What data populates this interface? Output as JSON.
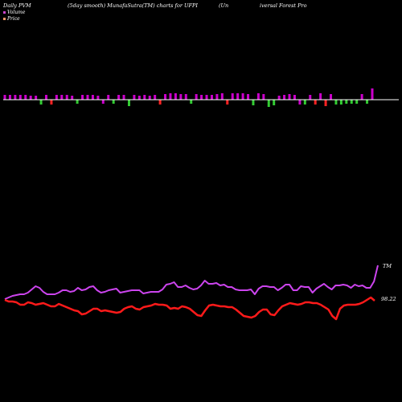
{
  "header": {
    "left": "Daily PVM",
    "mid1": "(5day smooth) MunafaSutra(TM) charts for UFPI",
    "mid2": "(Un",
    "right": "iversal Forest Pro"
  },
  "legend": {
    "volume_label": "Volume",
    "price_label": "Price",
    "volume_color": "#cc44cc",
    "price_color": "#ff9966"
  },
  "colors": {
    "background": "#000000",
    "pvm_up": "#cc00cc",
    "pvm_down": "#ff2222",
    "pvm_flat": "#33cc33",
    "pvm_line": "#cc44ee",
    "price_line": "#ff1a1a",
    "baseline": "#ffffff"
  },
  "labels": {
    "pvm_end": "TM",
    "price_end": "98.22"
  },
  "chart_data": {
    "type": "bar",
    "bars": [
      {
        "v": 6,
        "c": "up"
      },
      {
        "v": 6,
        "c": "up"
      },
      {
        "v": 6,
        "c": "up"
      },
      {
        "v": 6,
        "c": "up"
      },
      {
        "v": 6,
        "c": "up"
      },
      {
        "v": 5,
        "c": "up"
      },
      {
        "v": 5,
        "c": "up"
      },
      {
        "v": -6,
        "c": "flat"
      },
      {
        "v": 6,
        "c": "up"
      },
      {
        "v": -6,
        "c": "down"
      },
      {
        "v": 6,
        "c": "up"
      },
      {
        "v": 6,
        "c": "up"
      },
      {
        "v": 6,
        "c": "up"
      },
      {
        "v": 5,
        "c": "up"
      },
      {
        "v": -5,
        "c": "flat"
      },
      {
        "v": 6,
        "c": "up"
      },
      {
        "v": 6,
        "c": "up"
      },
      {
        "v": 6,
        "c": "up"
      },
      {
        "v": 5,
        "c": "up"
      },
      {
        "v": -5,
        "c": "up"
      },
      {
        "v": 6,
        "c": "up"
      },
      {
        "v": -5,
        "c": "flat"
      },
      {
        "v": 6,
        "c": "up"
      },
      {
        "v": 6,
        "c": "up"
      },
      {
        "v": -8,
        "c": "flat"
      },
      {
        "v": 6,
        "c": "up"
      },
      {
        "v": 5,
        "c": "up"
      },
      {
        "v": 6,
        "c": "up"
      },
      {
        "v": 5,
        "c": "up"
      },
      {
        "v": 6,
        "c": "up"
      },
      {
        "v": -6,
        "c": "down"
      },
      {
        "v": 7,
        "c": "up"
      },
      {
        "v": 8,
        "c": "up"
      },
      {
        "v": 8,
        "c": "up"
      },
      {
        "v": 7,
        "c": "up"
      },
      {
        "v": 7,
        "c": "up"
      },
      {
        "v": -5,
        "c": "flat"
      },
      {
        "v": 7,
        "c": "up"
      },
      {
        "v": 6,
        "c": "up"
      },
      {
        "v": 6,
        "c": "up"
      },
      {
        "v": 6,
        "c": "up"
      },
      {
        "v": 7,
        "c": "up"
      },
      {
        "v": 8,
        "c": "up"
      },
      {
        "v": -6,
        "c": "down"
      },
      {
        "v": 8,
        "c": "up"
      },
      {
        "v": 8,
        "c": "up"
      },
      {
        "v": 8,
        "c": "up"
      },
      {
        "v": 7,
        "c": "up"
      },
      {
        "v": -7,
        "c": "flat"
      },
      {
        "v": 8,
        "c": "up"
      },
      {
        "v": 7,
        "c": "up"
      },
      {
        "v": -9,
        "c": "flat"
      },
      {
        "v": -7,
        "c": "flat"
      },
      {
        "v": 5,
        "c": "up"
      },
      {
        "v": 6,
        "c": "up"
      },
      {
        "v": 7,
        "c": "up"
      },
      {
        "v": 6,
        "c": "up"
      },
      {
        "v": -6,
        "c": "up"
      },
      {
        "v": -6,
        "c": "flat"
      },
      {
        "v": 6,
        "c": "up"
      },
      {
        "v": -6,
        "c": "down"
      },
      {
        "v": 8,
        "c": "up"
      },
      {
        "v": -8,
        "c": "down"
      },
      {
        "v": 7,
        "c": "up"
      },
      {
        "v": -6,
        "c": "flat"
      },
      {
        "v": -6,
        "c": "flat"
      },
      {
        "v": -5,
        "c": "flat"
      },
      {
        "v": -5,
        "c": "flat"
      },
      {
        "v": -5,
        "c": "flat"
      },
      {
        "v": 7,
        "c": "up"
      },
      {
        "v": -5,
        "c": "flat"
      },
      {
        "v": 14,
        "c": "up"
      }
    ],
    "pvm_line": [
      372,
      370,
      368,
      367,
      366,
      366,
      364,
      360,
      356,
      358,
      363,
      366,
      366,
      366,
      364,
      361,
      361,
      363,
      362,
      358,
      361,
      360,
      357,
      356,
      361,
      364,
      363,
      361,
      360,
      359,
      364,
      363,
      362,
      361,
      361,
      361,
      365,
      364,
      363,
      363,
      363,
      360,
      354,
      353,
      351,
      357,
      357,
      355,
      358,
      360,
      359,
      355,
      349,
      353,
      353,
      352,
      355,
      354,
      357,
      357,
      360,
      361,
      361,
      361,
      360,
      366,
      359,
      356,
      356,
      357,
      357,
      361,
      358,
      354,
      354,
      361,
      361,
      356,
      357,
      357,
      364,
      359,
      356,
      353,
      357,
      360,
      355,
      355,
      354,
      355,
      358,
      354,
      356,
      355,
      358,
      358,
      350,
      330
    ],
    "price_line": [
      373,
      375,
      375,
      376,
      379,
      379,
      376,
      377,
      379,
      378,
      377,
      379,
      381,
      381,
      378,
      380,
      382,
      384,
      386,
      387,
      391,
      390,
      387,
      384,
      384,
      387,
      386,
      387,
      388,
      389,
      388,
      384,
      382,
      381,
      384,
      385,
      382,
      381,
      380,
      378,
      379,
      379,
      380,
      384,
      383,
      384,
      381,
      382,
      384,
      388,
      392,
      393,
      386,
      380,
      379,
      380,
      381,
      381,
      382,
      382,
      385,
      389,
      393,
      394,
      395,
      393,
      388,
      385,
      385,
      391,
      392,
      386,
      381,
      379,
      377,
      378,
      379,
      378,
      376,
      376,
      377,
      377,
      379,
      382,
      385,
      393,
      397,
      384,
      380,
      379,
      379,
      379,
      378,
      376,
      373,
      370,
      374
    ],
    "baseline": 124
  }
}
